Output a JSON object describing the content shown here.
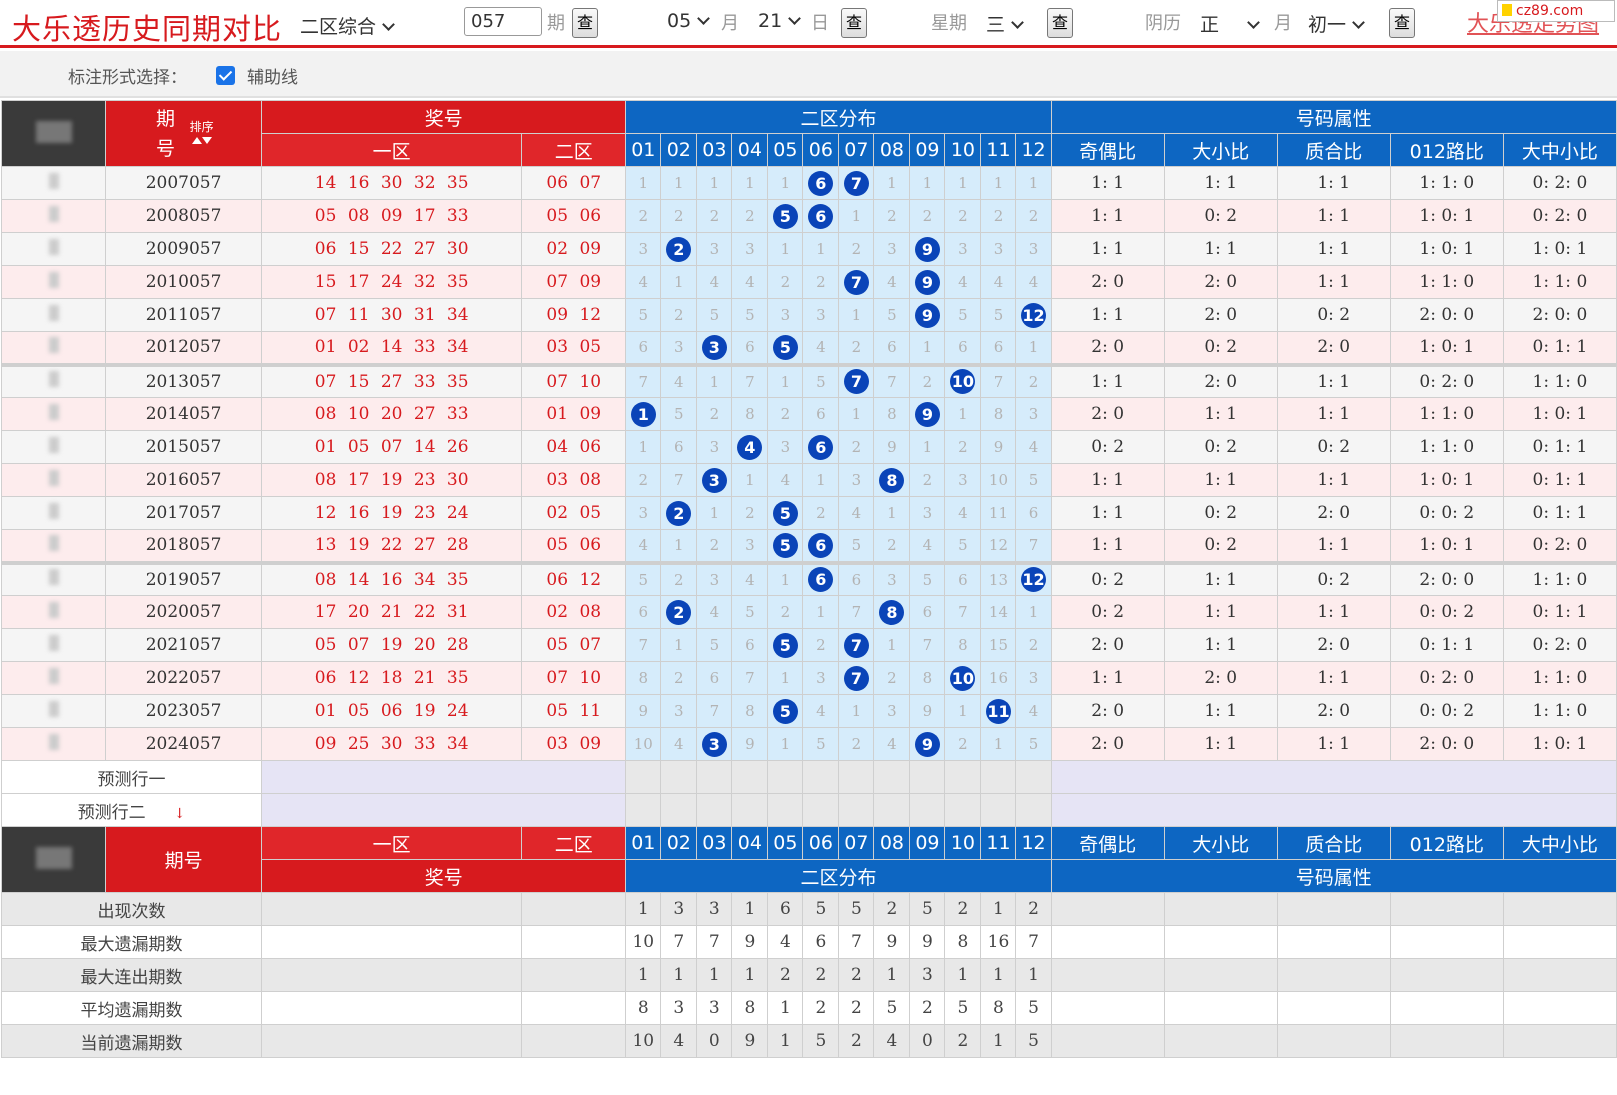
{
  "header": {
    "title": "大乐透历史同期对比",
    "mode": "二区综合",
    "issue_value": "057",
    "issue_unit": "期",
    "query_label": "查",
    "month": "05",
    "month_unit": "月",
    "day": "21",
    "day_unit": "日",
    "weekday_label": "星期",
    "weekday": "三",
    "lunar_label": "阴历",
    "lunar_month": "正",
    "lunar_month_unit": "月",
    "lunar_day": "初一",
    "trend_link": "大乐透走势图",
    "watermark": "cz89.com"
  },
  "options": {
    "label": "标注形式选择：",
    "checkbox_label": "辅助线",
    "checked": true
  },
  "table": {
    "group_headers": {
      "issue": "期号",
      "sort": "排序",
      "prize": "奖号",
      "dist": "二区分布",
      "attr": "号码属性"
    },
    "sub_headers": {
      "zone1": "一区",
      "zone2": "二区",
      "numbers": [
        "01",
        "02",
        "03",
        "04",
        "05",
        "06",
        "07",
        "08",
        "09",
        "10",
        "11",
        "12"
      ],
      "attrs": [
        "奇偶比",
        "大小比",
        "质合比",
        "012路比",
        "大中小比"
      ]
    },
    "rows": [
      {
        "issue": "2007057",
        "zone1": "14 16 30 32 35",
        "zone2": "06 07",
        "dist": [
          "1",
          "1",
          "1",
          "1",
          "1",
          "6",
          "7",
          "1",
          "1",
          "1",
          "1",
          "1"
        ],
        "attrs": [
          "1: 1",
          "1: 1",
          "1: 1",
          "1: 1: 0",
          "0: 2: 0"
        ]
      },
      {
        "issue": "2008057",
        "zone1": "05 08 09 17 33",
        "zone2": "05 06",
        "dist": [
          "2",
          "2",
          "2",
          "2",
          "5",
          "6",
          "1",
          "2",
          "2",
          "2",
          "2",
          "2"
        ],
        "attrs": [
          "1: 1",
          "0: 2",
          "1: 1",
          "1: 0: 1",
          "0: 2: 0"
        ]
      },
      {
        "issue": "2009057",
        "zone1": "06 15 22 27 30",
        "zone2": "02 09",
        "dist": [
          "3",
          "2",
          "3",
          "3",
          "1",
          "1",
          "2",
          "3",
          "9",
          "3",
          "3",
          "3"
        ],
        "attrs": [
          "1: 1",
          "1: 1",
          "1: 1",
          "1: 0: 1",
          "1: 0: 1"
        ]
      },
      {
        "issue": "2010057",
        "zone1": "15 17 24 32 35",
        "zone2": "07 09",
        "dist": [
          "4",
          "1",
          "4",
          "4",
          "2",
          "2",
          "7",
          "4",
          "9",
          "4",
          "4",
          "4"
        ],
        "attrs": [
          "2: 0",
          "2: 0",
          "1: 1",
          "1: 1: 0",
          "1: 1: 0"
        ]
      },
      {
        "issue": "2011057",
        "zone1": "07 11 30 31 34",
        "zone2": "09 12",
        "dist": [
          "5",
          "2",
          "5",
          "5",
          "3",
          "3",
          "1",
          "5",
          "9",
          "5",
          "5",
          "12"
        ],
        "attrs": [
          "1: 1",
          "2: 0",
          "0: 2",
          "2: 0: 0",
          "2: 0: 0"
        ]
      },
      {
        "issue": "2012057",
        "zone1": "01 02 14 33 34",
        "zone2": "03 05",
        "dist": [
          "6",
          "3",
          "3",
          "6",
          "5",
          "4",
          "2",
          "6",
          "1",
          "6",
          "6",
          "1"
        ],
        "attrs": [
          "2: 0",
          "0: 2",
          "2: 0",
          "1: 0: 1",
          "0: 1: 1"
        ]
      },
      {
        "issue": "2013057",
        "zone1": "07 15 27 33 35",
        "zone2": "07 10",
        "dist": [
          "7",
          "4",
          "1",
          "7",
          "1",
          "5",
          "7",
          "7",
          "2",
          "10",
          "7",
          "2"
        ],
        "attrs": [
          "1: 1",
          "2: 0",
          "1: 1",
          "0: 2: 0",
          "1: 1: 0"
        ]
      },
      {
        "issue": "2014057",
        "zone1": "08 10 20 27 33",
        "zone2": "01 09",
        "dist": [
          "1",
          "5",
          "2",
          "8",
          "2",
          "6",
          "1",
          "8",
          "9",
          "1",
          "8",
          "3"
        ],
        "attrs": [
          "2: 0",
          "1: 1",
          "1: 1",
          "1: 1: 0",
          "1: 0: 1"
        ]
      },
      {
        "issue": "2015057",
        "zone1": "01 05 07 14 26",
        "zone2": "04 06",
        "dist": [
          "1",
          "6",
          "3",
          "4",
          "3",
          "6",
          "2",
          "9",
          "1",
          "2",
          "9",
          "4"
        ],
        "attrs": [
          "0: 2",
          "0: 2",
          "0: 2",
          "1: 1: 0",
          "0: 1: 1"
        ]
      },
      {
        "issue": "2016057",
        "zone1": "08 17 19 23 30",
        "zone2": "03 08",
        "dist": [
          "2",
          "7",
          "3",
          "1",
          "4",
          "1",
          "3",
          "8",
          "2",
          "3",
          "10",
          "5"
        ],
        "attrs": [
          "1: 1",
          "1: 1",
          "1: 1",
          "1: 0: 1",
          "0: 1: 1"
        ]
      },
      {
        "issue": "2017057",
        "zone1": "12 16 19 23 24",
        "zone2": "02 05",
        "dist": [
          "3",
          "2",
          "1",
          "2",
          "5",
          "2",
          "4",
          "1",
          "3",
          "4",
          "11",
          "6"
        ],
        "attrs": [
          "1: 1",
          "0: 2",
          "2: 0",
          "0: 0: 2",
          "0: 1: 1"
        ]
      },
      {
        "issue": "2018057",
        "zone1": "13 19 22 27 28",
        "zone2": "05 06",
        "dist": [
          "4",
          "1",
          "2",
          "3",
          "5",
          "6",
          "5",
          "2",
          "4",
          "5",
          "12",
          "7"
        ],
        "attrs": [
          "1: 1",
          "0: 2",
          "1: 1",
          "1: 0: 1",
          "0: 2: 0"
        ]
      },
      {
        "issue": "2019057",
        "zone1": "08 14 16 34 35",
        "zone2": "06 12",
        "dist": [
          "5",
          "2",
          "3",
          "4",
          "1",
          "6",
          "6",
          "3",
          "5",
          "6",
          "13",
          "12"
        ],
        "attrs": [
          "0: 2",
          "1: 1",
          "0: 2",
          "2: 0: 0",
          "1: 1: 0"
        ]
      },
      {
        "issue": "2020057",
        "zone1": "17 20 21 22 31",
        "zone2": "02 08",
        "dist": [
          "6",
          "2",
          "4",
          "5",
          "2",
          "1",
          "7",
          "8",
          "6",
          "7",
          "14",
          "1"
        ],
        "attrs": [
          "0: 2",
          "1: 1",
          "1: 1",
          "0: 0: 2",
          "0: 1: 1"
        ]
      },
      {
        "issue": "2021057",
        "zone1": "05 07 19 20 28",
        "zone2": "05 07",
        "dist": [
          "7",
          "1",
          "5",
          "6",
          "5",
          "2",
          "7",
          "1",
          "7",
          "8",
          "15",
          "2"
        ],
        "attrs": [
          "2: 0",
          "1: 1",
          "2: 0",
          "0: 1: 1",
          "0: 2: 0"
        ]
      },
      {
        "issue": "2022057",
        "zone1": "06 12 18 21 35",
        "zone2": "07 10",
        "dist": [
          "8",
          "2",
          "6",
          "7",
          "1",
          "3",
          "7",
          "2",
          "8",
          "10",
          "16",
          "3"
        ],
        "attrs": [
          "1: 1",
          "2: 0",
          "1: 1",
          "0: 2: 0",
          "1: 1: 0"
        ]
      },
      {
        "issue": "2023057",
        "zone1": "01 05 06 19 24",
        "zone2": "05 11",
        "dist": [
          "9",
          "3",
          "7",
          "8",
          "5",
          "4",
          "1",
          "3",
          "9",
          "1",
          "11",
          "4"
        ],
        "attrs": [
          "2: 0",
          "1: 1",
          "2: 0",
          "0: 0: 2",
          "1: 1: 0"
        ]
      },
      {
        "issue": "2024057",
        "zone1": "09 25 30 33 34",
        "zone2": "03 09",
        "dist": [
          "10",
          "4",
          "3",
          "9",
          "1",
          "5",
          "2",
          "4",
          "9",
          "2",
          "1",
          "5"
        ],
        "attrs": [
          "2: 0",
          "1: 1",
          "1: 1",
          "2: 0: 0",
          "1: 0: 1"
        ]
      }
    ],
    "hits": [
      [
        6,
        7
      ],
      [
        5,
        6
      ],
      [
        2,
        9
      ],
      [
        7,
        9
      ],
      [
        9,
        12
      ],
      [
        3,
        5
      ],
      [
        7,
        10
      ],
      [
        1,
        9
      ],
      [
        4,
        6
      ],
      [
        3,
        8
      ],
      [
        2,
        5
      ],
      [
        5,
        6
      ],
      [
        6,
        12
      ],
      [
        2,
        8
      ],
      [
        5,
        7
      ],
      [
        7,
        10
      ],
      [
        5,
        11
      ],
      [
        3,
        9
      ]
    ],
    "predict_rows": [
      "预测行一",
      "预测行二"
    ],
    "stats": [
      {
        "label": "出现次数",
        "values": [
          "1",
          "3",
          "3",
          "1",
          "6",
          "5",
          "5",
          "2",
          "5",
          "2",
          "1",
          "2"
        ]
      },
      {
        "label": "最大遗漏期数",
        "values": [
          "10",
          "7",
          "7",
          "9",
          "4",
          "6",
          "7",
          "9",
          "9",
          "8",
          "16",
          "7"
        ]
      },
      {
        "label": "最大连出期数",
        "values": [
          "1",
          "1",
          "1",
          "1",
          "2",
          "2",
          "2",
          "1",
          "3",
          "1",
          "1",
          "1"
        ]
      },
      {
        "label": "平均遗漏期数",
        "values": [
          "8",
          "3",
          "3",
          "8",
          "1",
          "2",
          "2",
          "5",
          "2",
          "5",
          "8",
          "5"
        ]
      },
      {
        "label": "当前遗漏期数",
        "values": [
          "10",
          "4",
          "0",
          "9",
          "1",
          "5",
          "2",
          "4",
          "0",
          "2",
          "1",
          "5"
        ]
      }
    ]
  },
  "colors": {
    "brand_red": "#d71a1e",
    "header_blue": "#0d66c2",
    "ball_blue": "#0a44b8",
    "dist_bg": "#d6ecfb"
  }
}
